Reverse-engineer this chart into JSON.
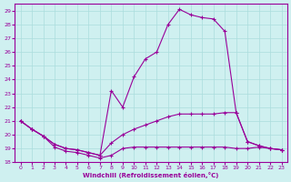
{
  "xlabel": "Windchill (Refroidissement éolien,°C)",
  "bg_color": "#cff0f0",
  "grid_color": "#aadddd",
  "line_color": "#990099",
  "xlim": [
    -0.5,
    23.5
  ],
  "ylim": [
    18,
    29.5
  ],
  "xticks": [
    0,
    1,
    2,
    3,
    4,
    5,
    6,
    7,
    8,
    9,
    10,
    11,
    12,
    13,
    14,
    15,
    16,
    17,
    18,
    19,
    20,
    21,
    22,
    23
  ],
  "yticks": [
    18,
    19,
    20,
    21,
    22,
    23,
    24,
    25,
    26,
    27,
    28,
    29
  ],
  "series1_x": [
    0,
    1,
    2,
    3,
    4,
    5,
    6,
    7,
    8,
    9,
    10,
    11,
    12,
    13,
    14,
    15,
    16,
    17,
    18,
    19,
    20,
    21,
    22,
    23
  ],
  "series1_y": [
    21.0,
    20.4,
    19.9,
    19.1,
    18.8,
    18.7,
    18.5,
    18.3,
    18.5,
    19.0,
    19.1,
    19.1,
    19.1,
    19.1,
    19.1,
    19.1,
    19.1,
    19.1,
    19.1,
    19.0,
    19.0,
    19.1,
    19.0,
    18.9
  ],
  "series2_x": [
    0,
    1,
    2,
    3,
    4,
    5,
    6,
    7,
    8,
    9,
    10,
    11,
    12,
    13,
    14,
    15,
    16,
    17,
    18,
    19,
    20,
    21,
    22,
    23
  ],
  "series2_y": [
    21.0,
    20.4,
    19.9,
    19.3,
    19.0,
    18.9,
    18.7,
    18.5,
    19.4,
    20.0,
    20.4,
    20.7,
    21.0,
    21.3,
    21.5,
    21.5,
    21.5,
    21.5,
    21.6,
    21.6,
    19.5,
    19.2,
    19.0,
    18.9
  ],
  "series3_x": [
    0,
    1,
    2,
    3,
    4,
    5,
    6,
    7,
    8,
    9,
    10,
    11,
    12,
    13,
    14,
    15,
    16,
    17,
    18,
    19,
    20,
    21,
    22,
    23
  ],
  "series3_y": [
    21.0,
    20.4,
    19.9,
    19.3,
    19.0,
    18.9,
    18.7,
    18.5,
    23.2,
    22.0,
    24.2,
    25.5,
    26.0,
    28.0,
    29.1,
    28.7,
    28.5,
    28.4,
    27.5,
    21.6,
    19.5,
    19.2,
    19.0,
    18.9
  ]
}
